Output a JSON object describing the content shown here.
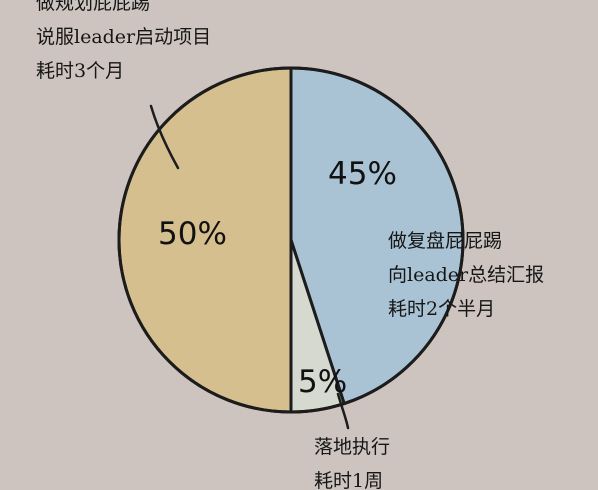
{
  "chart_data": {
    "type": "pie",
    "title": "",
    "slices": [
      {
        "key": "plan",
        "label_pct": "50%",
        "value": 50,
        "color": "#d6bf8e",
        "annotation": [
          "做规划屁屁踢",
          "说服leader启动项目",
          "耗时3个月"
        ]
      },
      {
        "key": "review",
        "label_pct": "45%",
        "value": 45,
        "color": "#a9c3d4",
        "annotation": [
          "做复盘屁屁踢",
          "向leader总结汇报",
          "耗时2个半月"
        ]
      },
      {
        "key": "exec",
        "label_pct": "5%",
        "value": 5,
        "color": "#d5d9cf",
        "annotation": [
          "落地执行",
          "耗时1周"
        ]
      }
    ]
  },
  "colors": {
    "background": "#cdc4bf",
    "outline": "#1c1c1c"
  }
}
